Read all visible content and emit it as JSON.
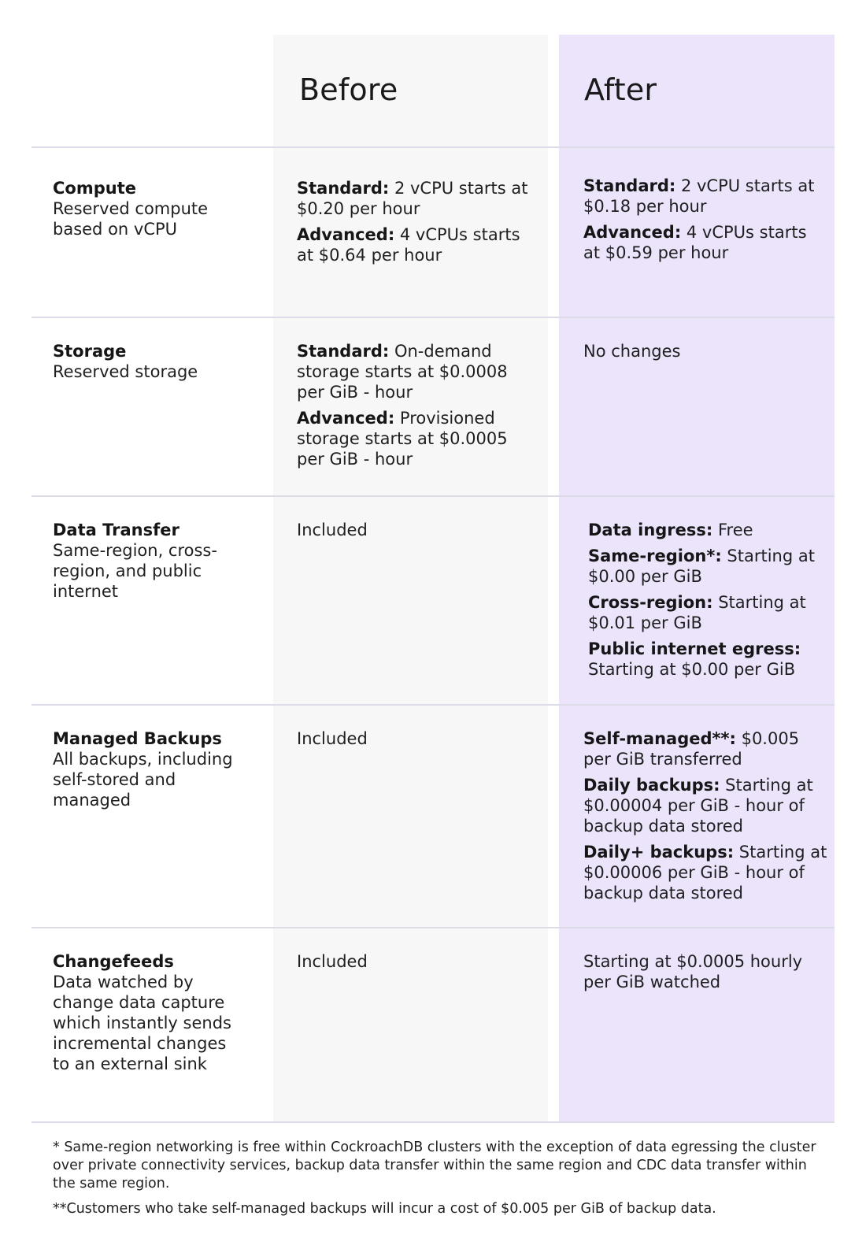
{
  "header": {
    "before": "Before",
    "after": "After"
  },
  "rows": [
    {
      "cat_title": "Compute",
      "cat_desc": "Reserved compute based on vCPU",
      "before": [
        {
          "label": "Standard:",
          "text": " 2 vCPU starts at $0.20 per hour"
        },
        {
          "label": "Advanced:",
          "text": " 4 vCPUs starts at $0.64 per hour"
        }
      ],
      "after": [
        {
          "label": "Standard:",
          "text": " 2 vCPU starts at $0.18 per hour"
        },
        {
          "label": "Advanced:",
          "text": " 4 vCPUs starts at $0.59 per hour"
        }
      ]
    },
    {
      "cat_title": "Storage",
      "cat_desc": "Reserved storage",
      "before": [
        {
          "label": "Standard:",
          "text": " On-demand storage starts at $0.0008 per GiB - hour"
        },
        {
          "label": "Advanced:",
          "text": " Provisioned storage starts at $0.0005 per GiB - hour"
        }
      ],
      "after": [
        {
          "label": "",
          "text": "No changes"
        }
      ]
    },
    {
      "cat_title": "Data Transfer",
      "cat_desc": "Same-region, cross-region, and public internet",
      "before": [
        {
          "label": "",
          "text": "Included"
        }
      ],
      "after": [
        {
          "label": "Data ingress:",
          "text": " Free"
        },
        {
          "label": "Same-region*:",
          "text": " Starting at $0.00 per GiB"
        },
        {
          "label": "Cross-region:",
          "text": " Starting at $0.01 per GiB"
        },
        {
          "label": "Public internet egress:",
          "text": " Starting at $0.00 per GiB"
        }
      ]
    },
    {
      "cat_title": "Managed Backups",
      "cat_desc": "All backups, including self-stored and managed",
      "before": [
        {
          "label": "",
          "text": "Included"
        }
      ],
      "after": [
        {
          "label": "Self-managed**:",
          "text": " $0.005 per GiB transferred"
        },
        {
          "label": "Daily backups:",
          "text": " Starting at $0.00004 per GiB - hour of backup data stored"
        },
        {
          "label": "Daily+ backups:",
          "text": " Starting at $0.00006 per GiB - hour of backup data stored"
        }
      ]
    },
    {
      "cat_title": "Changefeeds",
      "cat_desc": "Data watched by change data capture which instantly sends incremental changes to an external sink",
      "before": [
        {
          "label": "",
          "text": "Included"
        }
      ],
      "after": [
        {
          "label": "",
          "text": "Starting at $0.0005 hourly per GiB watched"
        }
      ]
    }
  ],
  "footnotes": [
    "* Same-region networking is free within CockroachDB clusters with the exception of data egressing the cluster over private connectivity services, backup data transfer within the same region and CDC data transfer within the same region.",
    "**Customers who take self-managed backups will incur a cost of $0.005 per GiB of backup data."
  ],
  "colors": {
    "before_bg": "#f7f7f7",
    "after_bg": "#ebe4fb",
    "divider": "#dcdbe8"
  }
}
